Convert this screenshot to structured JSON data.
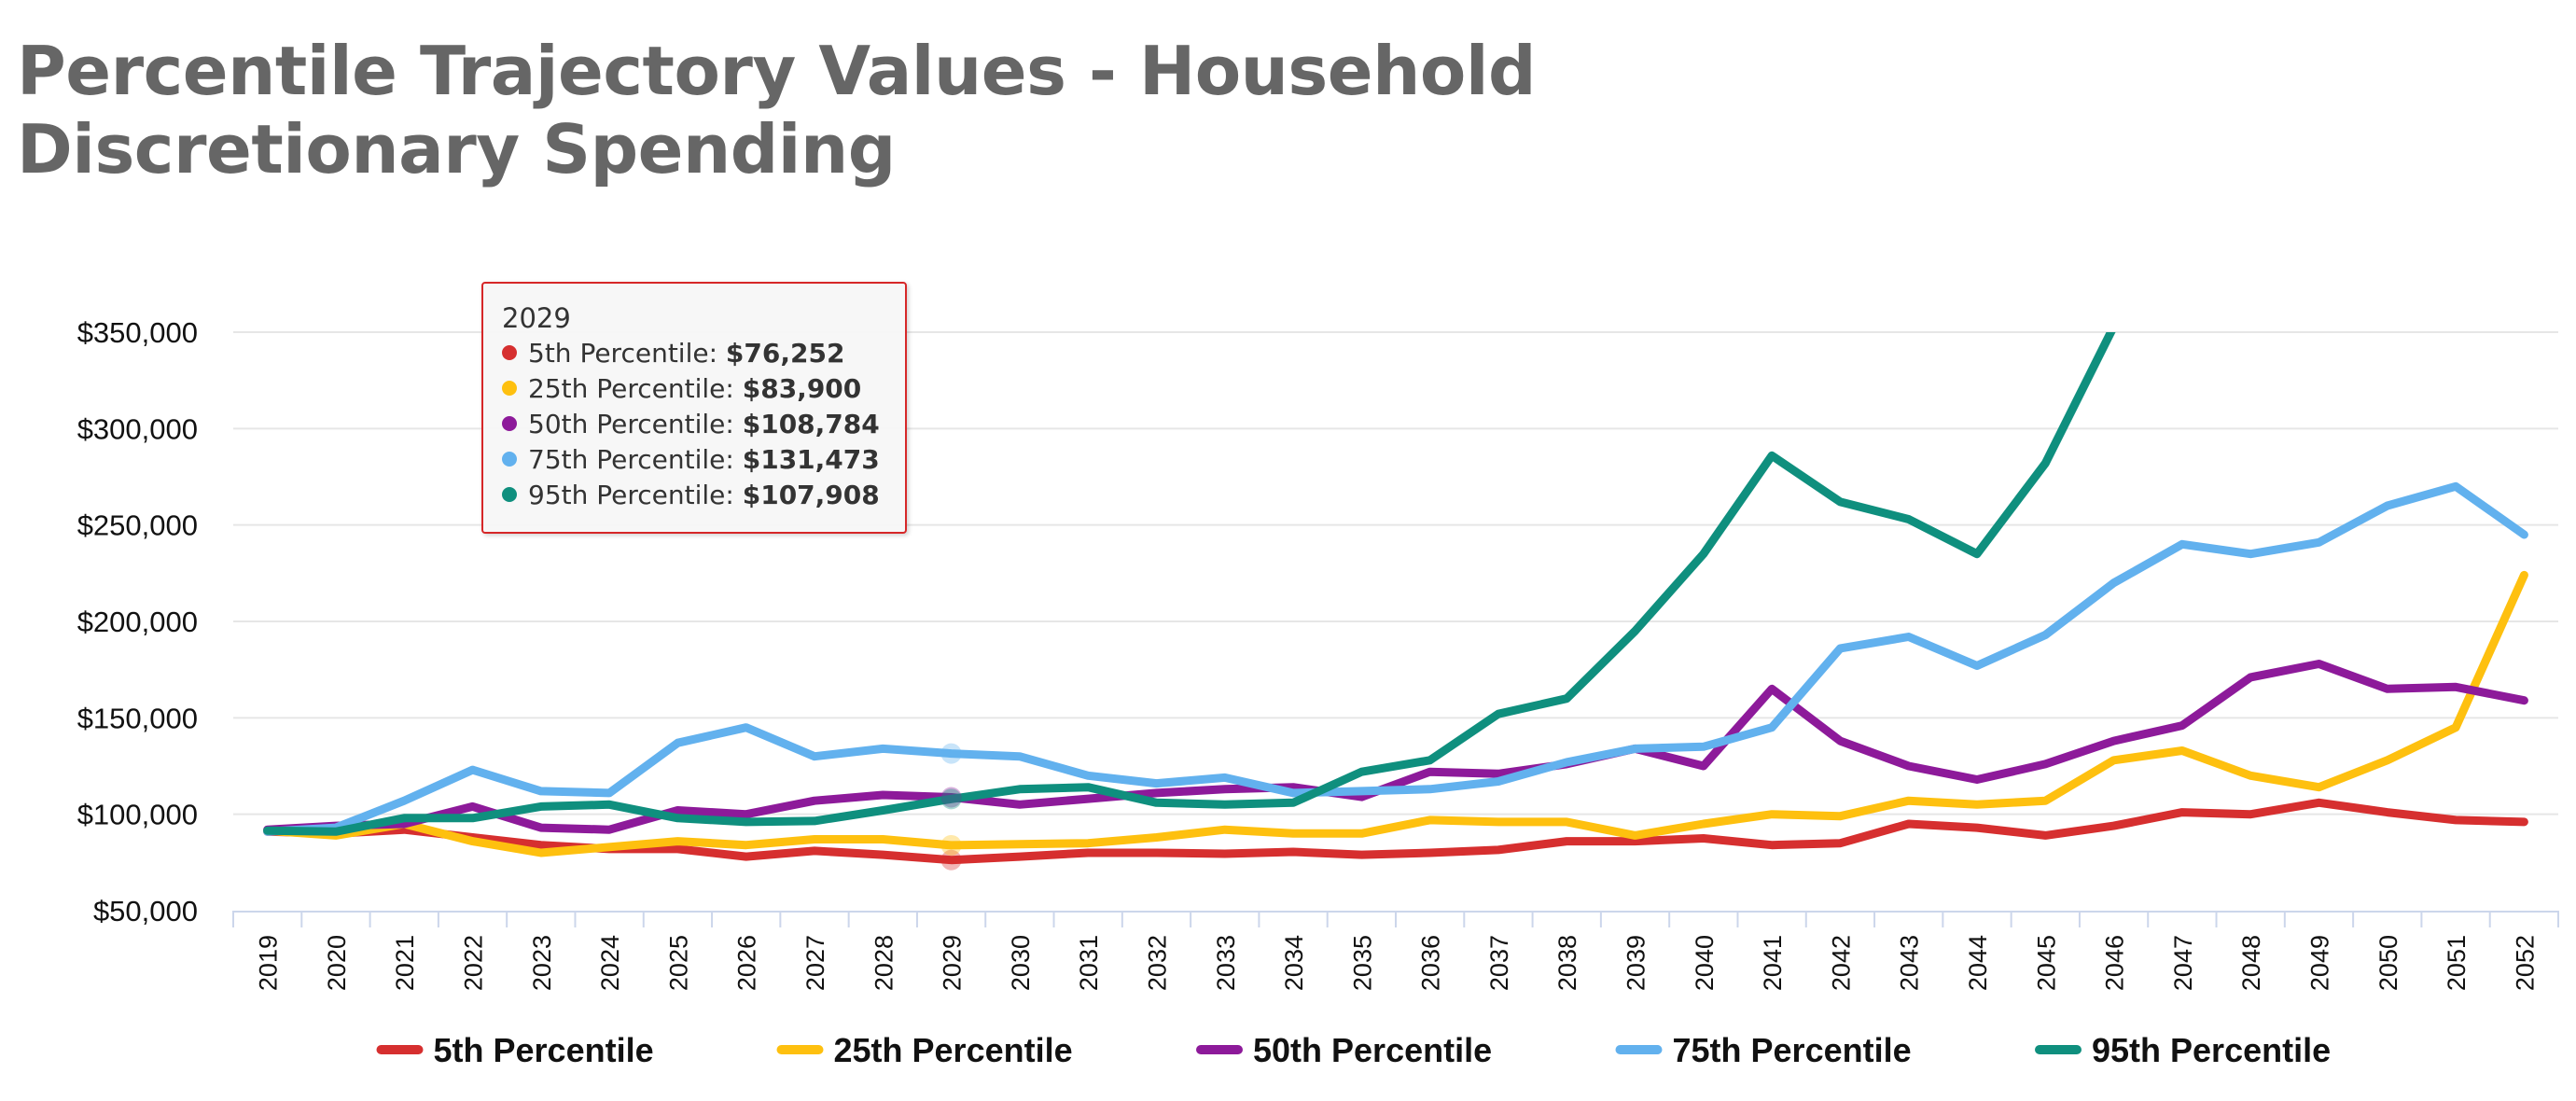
{
  "chart_data": {
    "type": "line",
    "title": "Percentile Trajectory Values - Household Discretionary Spending",
    "title_lines": [
      "Percentile Trajectory Values - Household",
      "Discretionary Spending"
    ],
    "x": [
      "2019",
      "2020",
      "2021",
      "2022",
      "2023",
      "2024",
      "2025",
      "2026",
      "2027",
      "2028",
      "2029",
      "2030",
      "2031",
      "2032",
      "2033",
      "2034",
      "2035",
      "2036",
      "2037",
      "2038",
      "2039",
      "2040",
      "2041",
      "2042",
      "2043",
      "2044",
      "2045",
      "2046",
      "2047",
      "2048",
      "2049",
      "2050",
      "2051",
      "2052"
    ],
    "ylim": [
      50000,
      350000
    ],
    "yticks": [
      50000,
      100000,
      150000,
      200000,
      250000,
      300000,
      350000
    ],
    "ytick_labels": [
      "$50,000",
      "$100,000",
      "$150,000",
      "$200,000",
      "$250,000",
      "$300,000",
      "$350,000"
    ],
    "grid": true,
    "legend_position": "bottom",
    "series": [
      {
        "name": "5th Percentile",
        "color": "#d62f2f",
        "values": [
          91000,
          90000,
          92000,
          88000,
          84000,
          82000,
          82000,
          78000,
          81000,
          79000,
          76252,
          78000,
          80000,
          80000,
          79500,
          80500,
          79000,
          80000,
          81500,
          86000,
          86000,
          87500,
          84000,
          85000,
          95000,
          93000,
          89000,
          94000,
          101000,
          100000,
          106000,
          101000,
          97000,
          96000
        ]
      },
      {
        "name": "25th Percentile",
        "color": "#fec00f",
        "values": [
          91500,
          89000,
          95000,
          86000,
          80000,
          83000,
          86000,
          84000,
          87000,
          87000,
          83900,
          84500,
          85000,
          88000,
          92000,
          90000,
          90000,
          97000,
          96000,
          96000,
          89000,
          95000,
          100000,
          99000,
          107000,
          105000,
          107000,
          128000,
          133000,
          120000,
          114000,
          128000,
          145000,
          224000
        ]
      },
      {
        "name": "50th Percentile",
        "color": "#8d1a9a",
        "values": [
          92000,
          94000,
          95000,
          104000,
          93000,
          92000,
          102000,
          100000,
          107000,
          110000,
          108784,
          105000,
          108000,
          111000,
          113000,
          114000,
          109000,
          122000,
          121000,
          126000,
          134000,
          125000,
          165000,
          138000,
          125000,
          118000,
          126000,
          138000,
          146000,
          171000,
          178000,
          165000,
          166000,
          159000
        ]
      },
      {
        "name": "75th Percentile",
        "color": "#62b1ee",
        "values": [
          91000,
          93000,
          107000,
          123000,
          112000,
          111000,
          137000,
          145000,
          130000,
          134000,
          131473,
          130000,
          120000,
          116000,
          119000,
          111000,
          112000,
          113000,
          117000,
          127000,
          134000,
          135000,
          145000,
          186000,
          192000,
          177000,
          193000,
          220000,
          240000,
          235000,
          241000,
          260000,
          270000,
          245000
        ]
      },
      {
        "name": "95th Percentile",
        "color": "#0f8f7e",
        "values": [
          91500,
          91000,
          98000,
          98000,
          104000,
          105000,
          98000,
          96000,
          96500,
          102000,
          107908,
          113000,
          114000,
          106000,
          105000,
          106000,
          122000,
          128000,
          152000,
          160000,
          195000,
          235000,
          286000,
          262000,
          253000,
          235000,
          282000,
          353000,
          null,
          null,
          null,
          null,
          null,
          null
        ]
      }
    ]
  },
  "tooltip": {
    "header": "2029",
    "rows": [
      {
        "label": "5th Percentile: ",
        "value": "$76,252",
        "color": "#d62f2f"
      },
      {
        "label": "25th Percentile: ",
        "value": "$83,900",
        "color": "#fec00f"
      },
      {
        "label": "50th Percentile: ",
        "value": "$108,784",
        "color": "#8d1a9a"
      },
      {
        "label": "75th Percentile: ",
        "value": "$131,473",
        "color": "#62b1ee"
      },
      {
        "label": "95th Percentile: ",
        "value": "$107,908",
        "color": "#0f8f7e"
      }
    ]
  },
  "colors": {
    "title": "#666666",
    "grid": "#e6e6e6",
    "axis": "#ccd6eb",
    "tooltip_border": "#d62728"
  }
}
